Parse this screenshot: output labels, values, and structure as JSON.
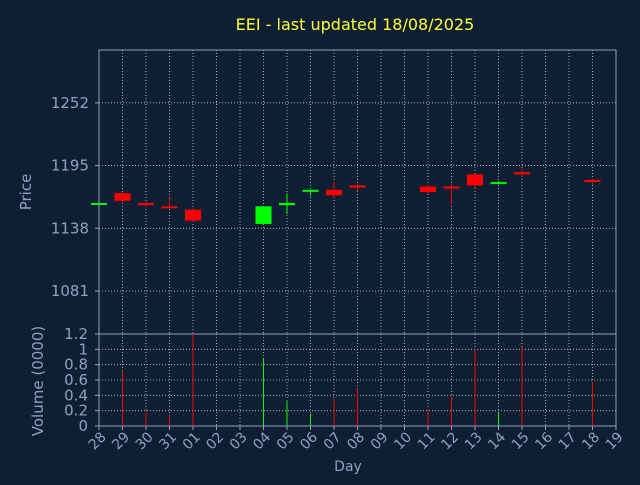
{
  "chart_data": {
    "type": "candlestick",
    "title": "EEI - last updated 18/08/2025",
    "price_panel": {
      "ylabel": "Price",
      "ylim": [
        1042,
        1300
      ],
      "yticks": [
        1081,
        1138,
        1195,
        1252
      ],
      "ytick_labels": [
        "1081",
        "1138",
        "1195",
        "1252"
      ],
      "grid": true
    },
    "volume_panel": {
      "ylabel": "Volume (0000)",
      "ylim": [
        0,
        1.2
      ],
      "yticks": [
        0,
        0.2,
        0.4,
        0.6,
        0.8,
        1,
        1.2
      ],
      "ytick_labels": [
        "0",
        "0.2",
        "0.4",
        "0.6",
        "0.8",
        "1",
        "1.2"
      ],
      "grid": true
    },
    "xlabel": "Day",
    "x_tick_labels": [
      "28",
      "29",
      "30",
      "31",
      "01",
      "02",
      "03",
      "04",
      "05",
      "06",
      "07",
      "08",
      "09",
      "10",
      "11",
      "12",
      "13",
      "14",
      "15",
      "16",
      "17",
      "18",
      "19"
    ],
    "colors": {
      "background": "#0f1f33",
      "axes": "#8ea2be",
      "grid": "#c0c8d4",
      "text": "#8ea2be",
      "title": "#ffff33",
      "up": "#00ff00",
      "down": "#ff0000"
    },
    "candles": [
      {
        "day": "28",
        "open": 1161,
        "high": 1161,
        "low": 1161,
        "close": 1161,
        "volume": 0.0
      },
      {
        "day": "29",
        "open": 1170,
        "high": 1171,
        "low": 1162,
        "close": 1163,
        "volume": 0.72
      },
      {
        "day": "30",
        "open": 1161,
        "high": 1162,
        "low": 1157,
        "close": 1159,
        "volume": 0.2
      },
      {
        "day": "31",
        "open": 1158,
        "high": 1167,
        "low": 1156,
        "close": 1157,
        "volume": 0.14
      },
      {
        "day": "01",
        "open": 1155,
        "high": 1156,
        "low": 1144,
        "close": 1145,
        "volume": 1.2
      },
      {
        "day": "04",
        "open": 1142,
        "high": 1158,
        "low": 1141,
        "close": 1158,
        "volume": 0.88
      },
      {
        "day": "05",
        "open": 1159,
        "high": 1170,
        "low": 1151,
        "close": 1161,
        "volume": 0.32
      },
      {
        "day": "06",
        "open": 1172,
        "high": 1173,
        "low": 1167,
        "close": 1173,
        "volume": 0.16
      },
      {
        "day": "07",
        "open": 1173,
        "high": 1180,
        "low": 1166,
        "close": 1168,
        "volume": 0.35
      },
      {
        "day": "08",
        "open": 1177,
        "high": 1178,
        "low": 1172,
        "close": 1175,
        "volume": 0.5
      },
      {
        "day": "11",
        "open": 1176,
        "high": 1177,
        "low": 1169,
        "close": 1171,
        "volume": 0.22
      },
      {
        "day": "12",
        "open": 1176,
        "high": 1178,
        "low": 1160,
        "close": 1175,
        "volume": 0.38
      },
      {
        "day": "13",
        "open": 1187,
        "high": 1187,
        "low": 1175,
        "close": 1177,
        "volume": 1.0
      },
      {
        "day": "14",
        "open": 1179,
        "high": 1181,
        "low": 1178,
        "close": 1180,
        "volume": 0.17
      },
      {
        "day": "15",
        "open": 1189,
        "high": 1192,
        "low": 1185,
        "close": 1187,
        "volume": 1.03
      },
      {
        "day": "18",
        "open": 1182,
        "high": 1183,
        "low": 1178,
        "close": 1180,
        "volume": 0.57
      }
    ]
  }
}
